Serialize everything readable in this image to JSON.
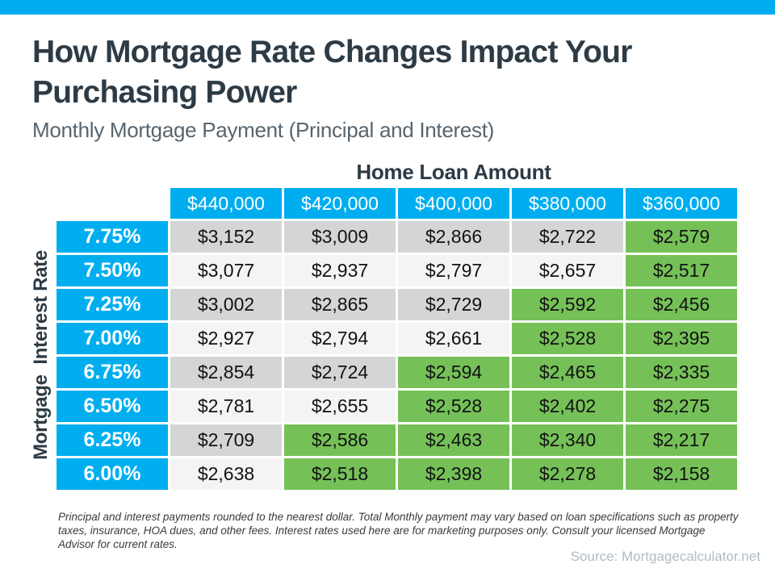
{
  "header": {
    "title": "How Mortgage Rate Changes Impact Your Purchasing Power",
    "subtitle": "Monthly Mortgage Payment (Principal and Interest)"
  },
  "colors": {
    "blue": "#00AEEF",
    "green": "#75C158",
    "gray_row": "#D3D5D7",
    "light_row": "#F4F4F5"
  },
  "chart_data": {
    "type": "table",
    "title": "How Mortgage Rate Changes Impact Your Purchasing Power",
    "subtitle": "Monthly Mortgage Payment (Principal and Interest)",
    "columns_label": "Home Loan Amount",
    "rows_label": "Mortgage  Interest Rate",
    "columns": [
      "$440,000",
      "$420,000",
      "$400,000",
      "$380,000",
      "$360,000"
    ],
    "rows": [
      {
        "rate": "7.75%",
        "values": [
          "$3,152",
          "$3,009",
          "$2,866",
          "$2,722",
          "$2,579"
        ],
        "green_cols": [
          4
        ]
      },
      {
        "rate": "7.50%",
        "values": [
          "$3,077",
          "$2,937",
          "$2,797",
          "$2,657",
          "$2,517"
        ],
        "green_cols": [
          4
        ]
      },
      {
        "rate": "7.25%",
        "values": [
          "$3,002",
          "$2,865",
          "$2,729",
          "$2,592",
          "$2,456"
        ],
        "green_cols": [
          3,
          4
        ]
      },
      {
        "rate": "7.00%",
        "values": [
          "$2,927",
          "$2,794",
          "$2,661",
          "$2,528",
          "$2,395"
        ],
        "green_cols": [
          3,
          4
        ]
      },
      {
        "rate": "6.75%",
        "values": [
          "$2,854",
          "$2,724",
          "$2,594",
          "$2,465",
          "$2,335"
        ],
        "green_cols": [
          2,
          3,
          4
        ]
      },
      {
        "rate": "6.50%",
        "values": [
          "$2,781",
          "$2,655",
          "$2,528",
          "$2,402",
          "$2,275"
        ],
        "green_cols": [
          2,
          3,
          4
        ]
      },
      {
        "rate": "6.25%",
        "values": [
          "$2,709",
          "$2,586",
          "$2,463",
          "$2,340",
          "$2,217"
        ],
        "green_cols": [
          1,
          2,
          3,
          4
        ]
      },
      {
        "rate": "6.00%",
        "values": [
          "$2,638",
          "$2,518",
          "$2,398",
          "$2,278",
          "$2,158"
        ],
        "green_cols": [
          1,
          2,
          3,
          4
        ]
      }
    ]
  },
  "footnote": "Principal and interest payments rounded to the nearest dollar. Total Monthly payment may vary based on loan specifications such as property taxes, insurance, HOA dues, and other fees. Interest rates used here are for marketing purposes only. Consult your licensed Mortgage Advisor for current rates.",
  "source": "Source: Mortgagecalculator.net"
}
